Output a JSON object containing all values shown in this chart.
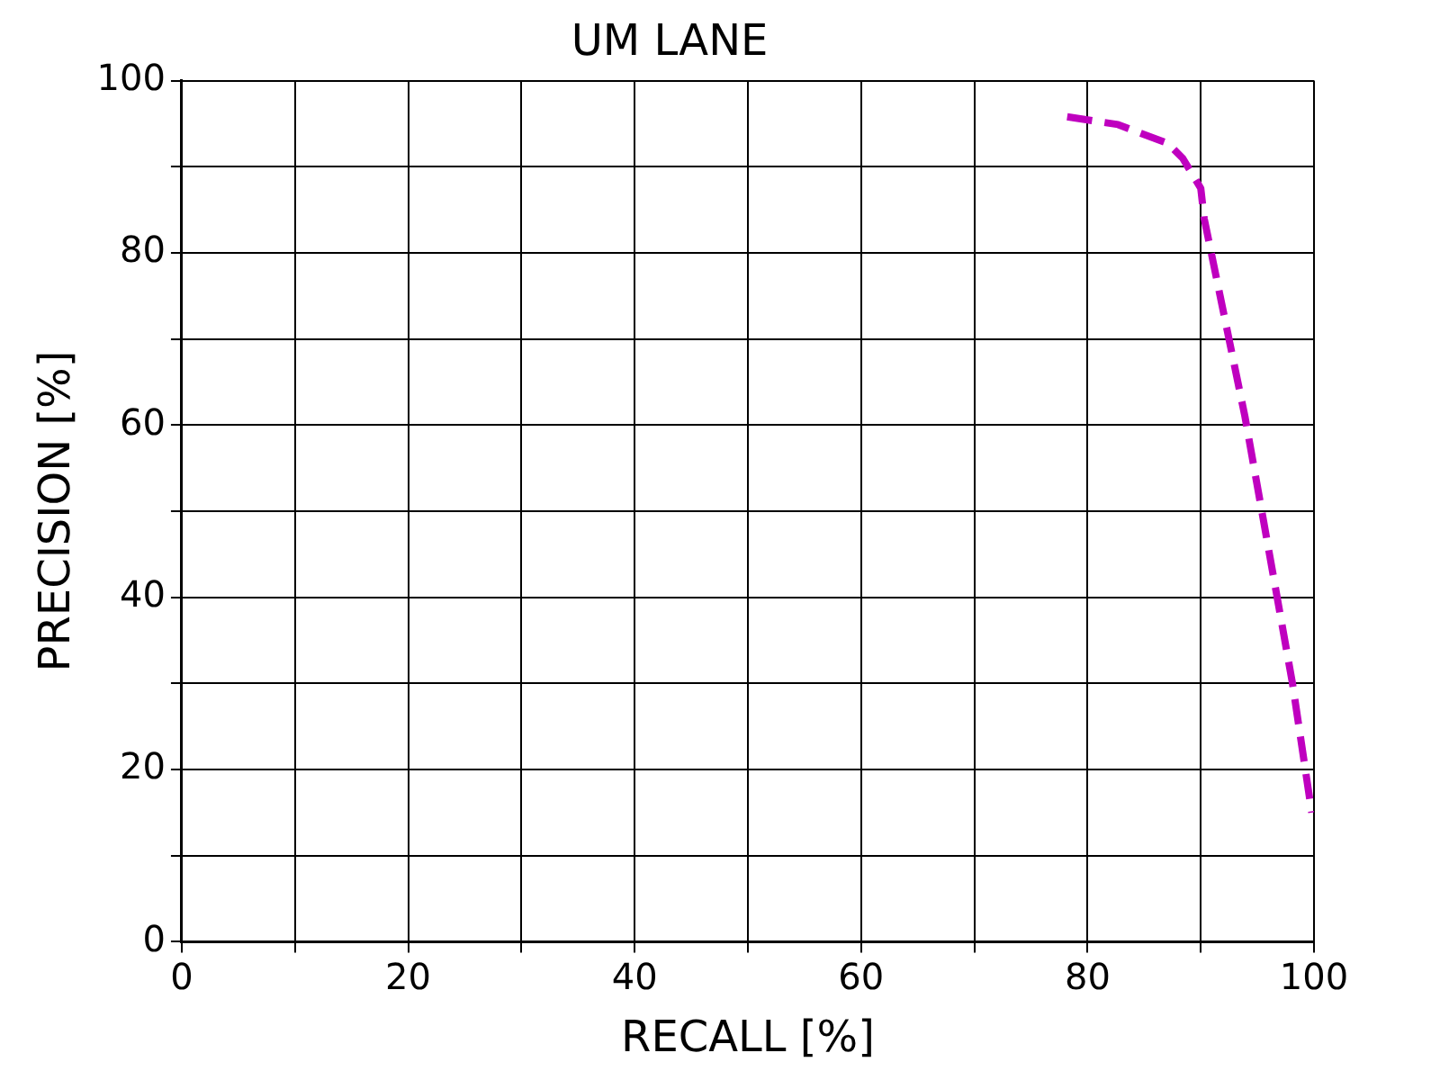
{
  "chart_data": {
    "type": "line",
    "title": "UM LANE",
    "xlabel": "RECALL [%]",
    "ylabel": "PRECISION [%]",
    "series": [
      {
        "color": "#bf00bf",
        "line_style": "dashed",
        "marker": "none",
        "x": [
          78.2,
          82.7,
          87.1,
          88.4,
          90,
          90.3,
          93.9,
          98.1,
          99.8
        ],
        "values": [
          95.8,
          94.9,
          92.7,
          91,
          87.5,
          84,
          61,
          30,
          15
        ]
      }
    ],
    "xlim": [
      0,
      100
    ],
    "ylim": [
      0,
      100
    ],
    "xticks": [
      0,
      {
        "value": 10,
        "label": null
      },
      20,
      {
        "value": 30,
        "label": null
      },
      40,
      {
        "value": 50,
        "label": null
      },
      60,
      {
        "value": 70,
        "label": null
      },
      80,
      {
        "value": 90,
        "label": null
      },
      100
    ],
    "yticks": [
      0,
      {
        "value": 10,
        "label": null
      },
      20,
      {
        "value": 30,
        "label": null
      },
      40,
      {
        "value": 50,
        "label": null
      },
      60,
      {
        "value": 70,
        "label": null
      },
      80,
      {
        "value": 90,
        "label": null
      },
      100
    ],
    "grid": true,
    "legend": false
  }
}
